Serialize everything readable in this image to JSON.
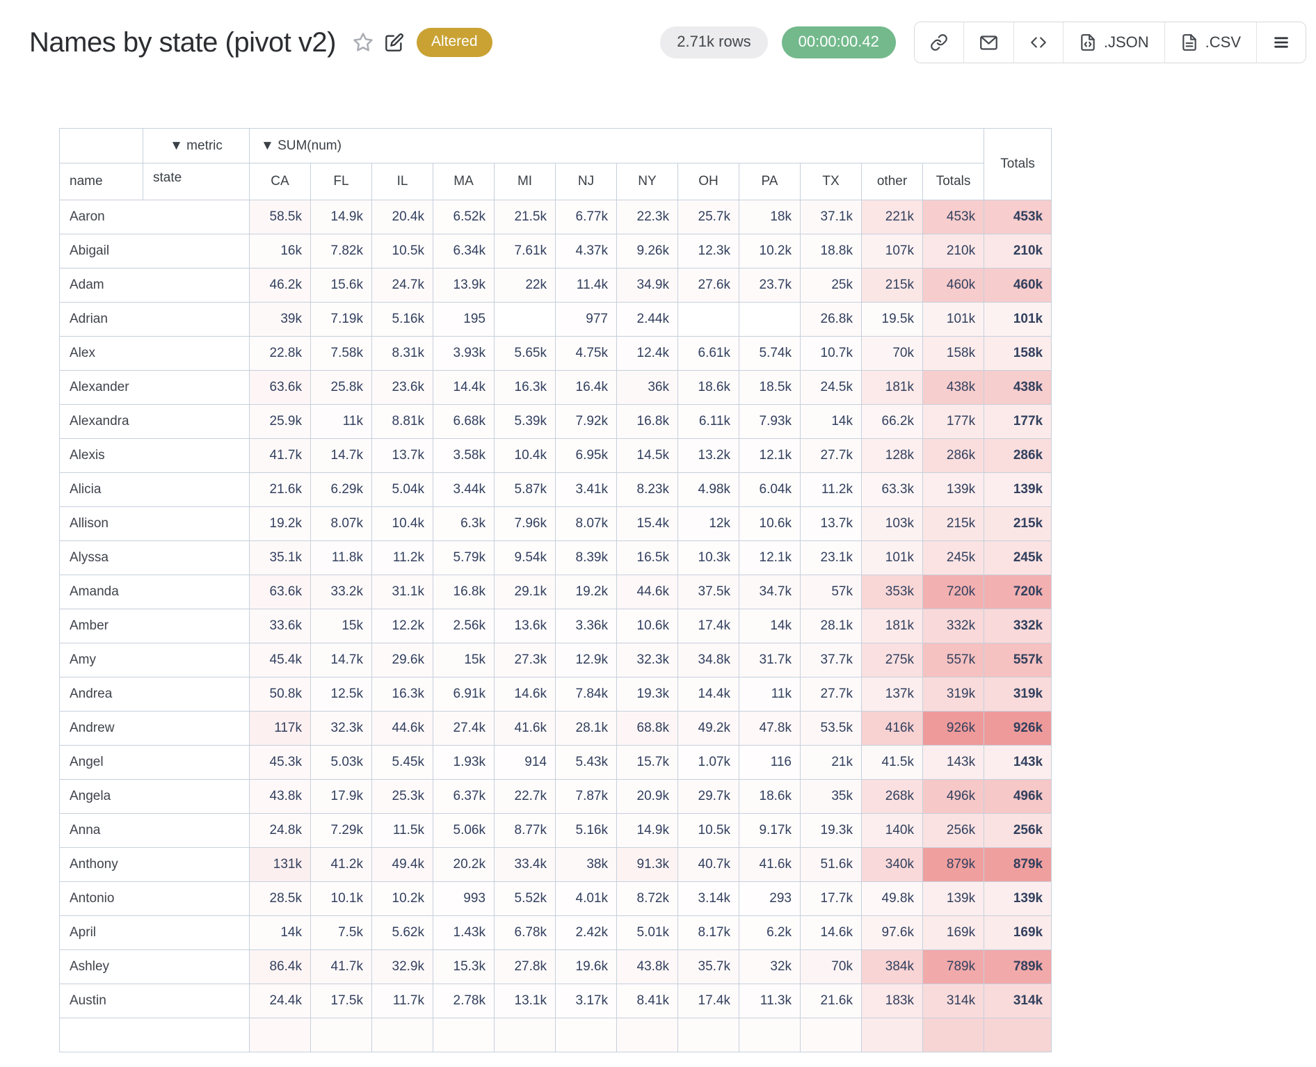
{
  "header": {
    "title": "Names by state (pivot v2)",
    "status_badge": "Altered",
    "rows_pill": "2.71k rows",
    "timer_pill": "00:00:00.42",
    "buttons": {
      "json_label": ".JSON",
      "csv_label": ".CSV"
    },
    "accent_colors": {
      "badge": "#c9a233",
      "timer": "#73b98c",
      "heat_max": "#ef9a9a"
    }
  },
  "table": {
    "metric_label": "▼ metric",
    "sum_label": "▼ SUM(num)",
    "state_label": "state",
    "name_label": "name",
    "totals_label": "Totals",
    "columns": [
      "CA",
      "FL",
      "IL",
      "MA",
      "MI",
      "NJ",
      "NY",
      "OH",
      "PA",
      "TX",
      "other",
      "Totals"
    ],
    "rows": [
      {
        "name": "Aaron",
        "cells": [
          "58.5k",
          "14.9k",
          "20.4k",
          "6.52k",
          "21.5k",
          "6.77k",
          "22.3k",
          "25.7k",
          "18k",
          "37.1k",
          "221k",
          "453k"
        ],
        "total": "453k"
      },
      {
        "name": "Abigail",
        "cells": [
          "16k",
          "7.82k",
          "10.5k",
          "6.34k",
          "7.61k",
          "4.37k",
          "9.26k",
          "12.3k",
          "10.2k",
          "18.8k",
          "107k",
          "210k"
        ],
        "total": "210k"
      },
      {
        "name": "Adam",
        "cells": [
          "46.2k",
          "15.6k",
          "24.7k",
          "13.9k",
          "22k",
          "11.4k",
          "34.9k",
          "27.6k",
          "23.7k",
          "25k",
          "215k",
          "460k"
        ],
        "total": "460k"
      },
      {
        "name": "Adrian",
        "cells": [
          "39k",
          "7.19k",
          "5.16k",
          "195",
          "",
          "977",
          "2.44k",
          "",
          "",
          "26.8k",
          "19.5k",
          "101k"
        ],
        "total": "101k"
      },
      {
        "name": "Alex",
        "cells": [
          "22.8k",
          "7.58k",
          "8.31k",
          "3.93k",
          "5.65k",
          "4.75k",
          "12.4k",
          "6.61k",
          "5.74k",
          "10.7k",
          "70k",
          "158k"
        ],
        "total": "158k"
      },
      {
        "name": "Alexander",
        "cells": [
          "63.6k",
          "25.8k",
          "23.6k",
          "14.4k",
          "16.3k",
          "16.4k",
          "36k",
          "18.6k",
          "18.5k",
          "24.5k",
          "181k",
          "438k"
        ],
        "total": "438k"
      },
      {
        "name": "Alexandra",
        "cells": [
          "25.9k",
          "11k",
          "8.81k",
          "6.68k",
          "5.39k",
          "7.92k",
          "16.8k",
          "6.11k",
          "7.93k",
          "14k",
          "66.2k",
          "177k"
        ],
        "total": "177k"
      },
      {
        "name": "Alexis",
        "cells": [
          "41.7k",
          "14.7k",
          "13.7k",
          "3.58k",
          "10.4k",
          "6.95k",
          "14.5k",
          "13.2k",
          "12.1k",
          "27.7k",
          "128k",
          "286k"
        ],
        "total": "286k"
      },
      {
        "name": "Alicia",
        "cells": [
          "21.6k",
          "6.29k",
          "5.04k",
          "3.44k",
          "5.87k",
          "3.41k",
          "8.23k",
          "4.98k",
          "6.04k",
          "11.2k",
          "63.3k",
          "139k"
        ],
        "total": "139k"
      },
      {
        "name": "Allison",
        "cells": [
          "19.2k",
          "8.07k",
          "10.4k",
          "6.3k",
          "7.96k",
          "8.07k",
          "15.4k",
          "12k",
          "10.6k",
          "13.7k",
          "103k",
          "215k"
        ],
        "total": "215k"
      },
      {
        "name": "Alyssa",
        "cells": [
          "35.1k",
          "11.8k",
          "11.2k",
          "5.79k",
          "9.54k",
          "8.39k",
          "16.5k",
          "10.3k",
          "12.1k",
          "23.1k",
          "101k",
          "245k"
        ],
        "total": "245k"
      },
      {
        "name": "Amanda",
        "cells": [
          "63.6k",
          "33.2k",
          "31.1k",
          "16.8k",
          "29.1k",
          "19.2k",
          "44.6k",
          "37.5k",
          "34.7k",
          "57k",
          "353k",
          "720k"
        ],
        "total": "720k"
      },
      {
        "name": "Amber",
        "cells": [
          "33.6k",
          "15k",
          "12.2k",
          "2.56k",
          "13.6k",
          "3.36k",
          "10.6k",
          "17.4k",
          "14k",
          "28.1k",
          "181k",
          "332k"
        ],
        "total": "332k"
      },
      {
        "name": "Amy",
        "cells": [
          "45.4k",
          "14.7k",
          "29.6k",
          "15k",
          "27.3k",
          "12.9k",
          "32.3k",
          "34.8k",
          "31.7k",
          "37.7k",
          "275k",
          "557k"
        ],
        "total": "557k"
      },
      {
        "name": "Andrea",
        "cells": [
          "50.8k",
          "12.5k",
          "16.3k",
          "6.91k",
          "14.6k",
          "7.84k",
          "19.3k",
          "14.4k",
          "11k",
          "27.7k",
          "137k",
          "319k"
        ],
        "total": "319k"
      },
      {
        "name": "Andrew",
        "cells": [
          "117k",
          "32.3k",
          "44.6k",
          "27.4k",
          "41.6k",
          "28.1k",
          "68.8k",
          "49.2k",
          "47.8k",
          "53.5k",
          "416k",
          "926k"
        ],
        "total": "926k"
      },
      {
        "name": "Angel",
        "cells": [
          "45.3k",
          "5.03k",
          "5.45k",
          "1.93k",
          "914",
          "5.43k",
          "15.7k",
          "1.07k",
          "116",
          "21k",
          "41.5k",
          "143k"
        ],
        "total": "143k"
      },
      {
        "name": "Angela",
        "cells": [
          "43.8k",
          "17.9k",
          "25.3k",
          "6.37k",
          "22.7k",
          "7.87k",
          "20.9k",
          "29.7k",
          "18.6k",
          "35k",
          "268k",
          "496k"
        ],
        "total": "496k"
      },
      {
        "name": "Anna",
        "cells": [
          "24.8k",
          "7.29k",
          "11.5k",
          "5.06k",
          "8.77k",
          "5.16k",
          "14.9k",
          "10.5k",
          "9.17k",
          "19.3k",
          "140k",
          "256k"
        ],
        "total": "256k"
      },
      {
        "name": "Anthony",
        "cells": [
          "131k",
          "41.2k",
          "49.4k",
          "20.2k",
          "33.4k",
          "38k",
          "91.3k",
          "40.7k",
          "41.6k",
          "51.6k",
          "340k",
          "879k"
        ],
        "total": "879k"
      },
      {
        "name": "Antonio",
        "cells": [
          "28.5k",
          "10.1k",
          "10.2k",
          "993",
          "5.52k",
          "4.01k",
          "8.72k",
          "3.14k",
          "293",
          "17.7k",
          "49.8k",
          "139k"
        ],
        "total": "139k"
      },
      {
        "name": "April",
        "cells": [
          "14k",
          "7.5k",
          "5.62k",
          "1.43k",
          "6.78k",
          "2.42k",
          "5.01k",
          "8.17k",
          "6.2k",
          "14.6k",
          "97.6k",
          "169k"
        ],
        "total": "169k"
      },
      {
        "name": "Ashley",
        "cells": [
          "86.4k",
          "41.7k",
          "32.9k",
          "15.3k",
          "27.8k",
          "19.6k",
          "43.8k",
          "35.7k",
          "32k",
          "70k",
          "384k",
          "789k"
        ],
        "total": "789k"
      },
      {
        "name": "Austin",
        "cells": [
          "24.4k",
          "17.5k",
          "11.7k",
          "2.78k",
          "13.1k",
          "3.17k",
          "8.41k",
          "17.4k",
          "11.3k",
          "21.6k",
          "183k",
          "314k"
        ],
        "total": "314k"
      }
    ]
  }
}
